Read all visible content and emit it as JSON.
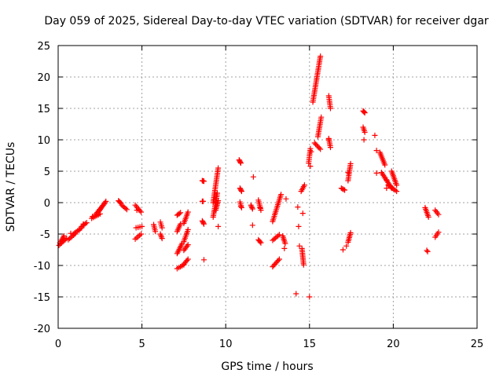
{
  "chart_data": {
    "type": "scatter",
    "title": "Day 059 of 2025, Sidereal Day-to-day VTEC variation (SDTVAR) for receiver dgar",
    "xlabel": "GPS time / hours",
    "ylabel": "SDTVAR / TECUs",
    "xlim": [
      0,
      25
    ],
    "ylim": [
      -20,
      25
    ],
    "xticks": [
      0,
      5,
      10,
      15,
      20,
      25
    ],
    "yticks": [
      -20,
      -15,
      -10,
      -5,
      0,
      5,
      10,
      15,
      20,
      25
    ],
    "grid": true,
    "marker": "plus",
    "color": "#ff0000",
    "tracks": [
      {
        "x0": 0.05,
        "x1": 0.5,
        "y0": -6.8,
        "y1": -5.7
      },
      {
        "x0": 0.1,
        "x1": 0.35,
        "y0": -6.4,
        "y1": -5.3
      },
      {
        "x0": 0.6,
        "x1": 1.0,
        "y0": -5.9,
        "y1": -5.0
      },
      {
        "x0": 0.9,
        "x1": 1.4,
        "y0": -5.0,
        "y1": -4.0
      },
      {
        "x0": 1.4,
        "x1": 1.7,
        "y0": -3.8,
        "y1": -3.2
      },
      {
        "x0": 2.0,
        "x1": 2.5,
        "y0": -2.5,
        "y1": -1.8
      },
      {
        "x0": 2.2,
        "x1": 2.8,
        "y0": -2.0,
        "y1": 0.0
      },
      {
        "x0": 2.4,
        "x1": 2.85,
        "y0": -1.5,
        "y1": 0.2
      },
      {
        "x0": 3.6,
        "x1": 3.75,
        "y0": 0.3,
        "y1": -0.1
      },
      {
        "x0": 3.8,
        "x1": 4.1,
        "y0": -0.4,
        "y1": -1.1
      },
      {
        "x0": 4.6,
        "x1": 4.95,
        "y0": -0.4,
        "y1": -1.5
      },
      {
        "x0": 4.65,
        "x1": 5.0,
        "y0": -4.0,
        "y1": -3.8
      },
      {
        "x0": 4.6,
        "x1": 4.95,
        "y0": -5.8,
        "y1": -5.0
      },
      {
        "x0": 5.7,
        "x1": 5.8,
        "y0": -3.5,
        "y1": -4.6
      },
      {
        "x0": 6.1,
        "x1": 6.2,
        "y0": -3.1,
        "y1": -4.0
      },
      {
        "x0": 6.1,
        "x1": 6.2,
        "y0": -5.0,
        "y1": -5.7
      },
      {
        "x0": 7.1,
        "x1": 7.3,
        "y0": -2.0,
        "y1": -1.6
      },
      {
        "x0": 7.1,
        "x1": 7.3,
        "y0": -4.6,
        "y1": -3.4
      },
      {
        "x0": 7.1,
        "x1": 7.4,
        "y0": -8.1,
        "y1": -6.5
      },
      {
        "x0": 7.1,
        "x1": 7.5,
        "y0": -10.5,
        "y1": -9.9
      },
      {
        "x0": 7.5,
        "x1": 7.75,
        "y0": -3.3,
        "y1": -1.5
      },
      {
        "x0": 7.5,
        "x1": 7.75,
        "y0": -6.2,
        "y1": -4.3
      },
      {
        "x0": 7.5,
        "x1": 7.75,
        "y0": -7.6,
        "y1": -6.7
      },
      {
        "x0": 7.5,
        "x1": 7.75,
        "y0": -9.8,
        "y1": -9.0
      },
      {
        "x0": 8.6,
        "x1": 8.7,
        "y0": 3.5,
        "y1": 3.4
      },
      {
        "x0": 8.6,
        "x1": 8.65,
        "y0": 0.2,
        "y1": 0.2
      },
      {
        "x0": 8.6,
        "x1": 8.7,
        "y0": -2.9,
        "y1": -3.4
      },
      {
        "x0": 9.25,
        "x1": 9.55,
        "y0": 0.0,
        "y1": 5.5
      },
      {
        "x0": 9.25,
        "x1": 9.5,
        "y0": -2.3,
        "y1": 1.5
      },
      {
        "x0": 9.4,
        "x1": 9.55,
        "y0": -1.2,
        "y1": 0.3
      },
      {
        "x0": 10.8,
        "x1": 10.9,
        "y0": 6.8,
        "y1": 6.3
      },
      {
        "x0": 10.85,
        "x1": 10.95,
        "y0": 2.3,
        "y1": 1.8
      },
      {
        "x0": 10.85,
        "x1": 10.95,
        "y0": 0.1,
        "y1": -0.8
      },
      {
        "x0": 11.5,
        "x1": 11.6,
        "y0": -0.4,
        "y1": -1.0
      },
      {
        "x0": 11.95,
        "x1": 12.1,
        "y0": 0.4,
        "y1": -1.2
      },
      {
        "x0": 11.95,
        "x1": 12.1,
        "y0": -5.9,
        "y1": -6.4
      },
      {
        "x0": 12.8,
        "x1": 13.3,
        "y0": -3.0,
        "y1": 1.3
      },
      {
        "x0": 12.8,
        "x1": 13.2,
        "y0": -6.0,
        "y1": -5.1
      },
      {
        "x0": 12.8,
        "x1": 13.2,
        "y0": -10.2,
        "y1": -9.0
      },
      {
        "x0": 13.4,
        "x1": 13.55,
        "y0": -5.3,
        "y1": -6.5
      },
      {
        "x0": 14.5,
        "x1": 14.7,
        "y0": 1.8,
        "y1": 2.8
      },
      {
        "x0": 14.55,
        "x1": 14.65,
        "y0": -7.3,
        "y1": -9.9
      },
      {
        "x0": 15.2,
        "x1": 15.65,
        "y0": 16.0,
        "y1": 23.3
      },
      {
        "x0": 15.5,
        "x1": 15.7,
        "y0": 10.5,
        "y1": 13.6
      },
      {
        "x0": 15.3,
        "x1": 15.65,
        "y0": 9.5,
        "y1": 8.5
      },
      {
        "x0": 14.95,
        "x1": 15.05,
        "y0": 6.3,
        "y1": 8.6
      },
      {
        "x0": 16.15,
        "x1": 16.25,
        "y0": 17.0,
        "y1": 15.0
      },
      {
        "x0": 16.15,
        "x1": 16.25,
        "y0": 10.2,
        "y1": 8.8
      },
      {
        "x0": 17.3,
        "x1": 17.45,
        "y0": 3.5,
        "y1": 6.2
      },
      {
        "x0": 17.3,
        "x1": 17.45,
        "y0": -6.3,
        "y1": -4.8
      },
      {
        "x0": 16.9,
        "x1": 17.1,
        "y0": 2.3,
        "y1": 2.0
      },
      {
        "x0": 18.2,
        "x1": 18.3,
        "y0": 14.6,
        "y1": 14.3
      },
      {
        "x0": 18.2,
        "x1": 18.3,
        "y0": 12.0,
        "y1": 11.2
      },
      {
        "x0": 19.2,
        "x1": 19.5,
        "y0": 8.0,
        "y1": 6.0
      },
      {
        "x0": 19.3,
        "x1": 19.9,
        "y0": 4.8,
        "y1": 2.3
      },
      {
        "x0": 19.9,
        "x1": 20.2,
        "y0": 5.0,
        "y1": 2.8
      },
      {
        "x0": 19.7,
        "x1": 20.2,
        "y0": 2.8,
        "y1": 1.8
      },
      {
        "x0": 21.9,
        "x1": 22.1,
        "y0": -0.8,
        "y1": -2.3
      },
      {
        "x0": 22.5,
        "x1": 22.7,
        "y0": -1.2,
        "y1": -1.9
      },
      {
        "x0": 22.5,
        "x1": 22.7,
        "y0": -5.5,
        "y1": -4.7
      }
    ],
    "points": [
      [
        0.35,
        -5.8
      ],
      [
        0.75,
        -4.9
      ],
      [
        1.25,
        -4.4
      ],
      [
        1.5,
        -3.4
      ],
      [
        2.05,
        -2.2
      ],
      [
        4.7,
        -1.2
      ],
      [
        8.7,
        -9.1
      ],
      [
        9.55,
        -3.8
      ],
      [
        10.9,
        -0.6
      ],
      [
        11.6,
        -3.6
      ],
      [
        11.65,
        4.1
      ],
      [
        12.05,
        -0.8
      ],
      [
        13.5,
        -7.3
      ],
      [
        13.6,
        0.6
      ],
      [
        14.2,
        -14.5
      ],
      [
        14.3,
        -0.7
      ],
      [
        14.35,
        -3.8
      ],
      [
        14.4,
        -6.9
      ],
      [
        14.6,
        -1.7
      ],
      [
        15.0,
        -15.0
      ],
      [
        15.05,
        5.8
      ],
      [
        15.1,
        8.1
      ],
      [
        16.15,
        10.0
      ],
      [
        17.0,
        -7.5
      ],
      [
        17.2,
        -6.9
      ],
      [
        17.3,
        4.8
      ],
      [
        18.25,
        10.0
      ],
      [
        18.9,
        10.7
      ],
      [
        19.0,
        8.3
      ],
      [
        19.0,
        4.7
      ],
      [
        19.6,
        3.6
      ],
      [
        19.6,
        2.3
      ],
      [
        22.0,
        -7.6
      ],
      [
        22.05,
        -7.8
      ]
    ]
  }
}
